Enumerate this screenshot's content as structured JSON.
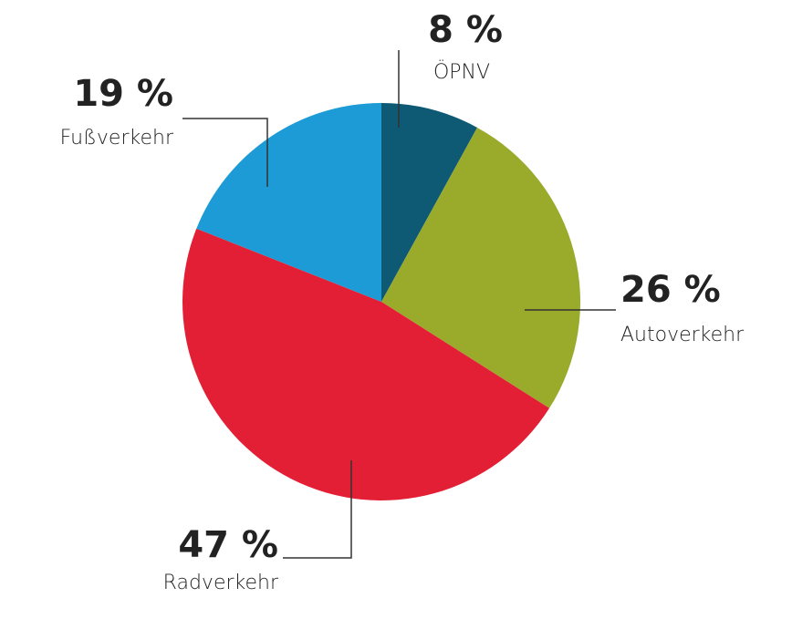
{
  "chart_data": {
    "type": "pie",
    "categories": [
      "ÖPNV",
      "Autoverkehr",
      "Radverkehr",
      "Fußverkehr"
    ],
    "values": [
      8,
      26,
      47,
      19
    ],
    "value_labels": [
      "8 %",
      "26 %",
      "47 %",
      "19 %"
    ],
    "colors": [
      "#0e5a74",
      "#9aab2b",
      "#e31f36",
      "#1c9bd7"
    ]
  }
}
